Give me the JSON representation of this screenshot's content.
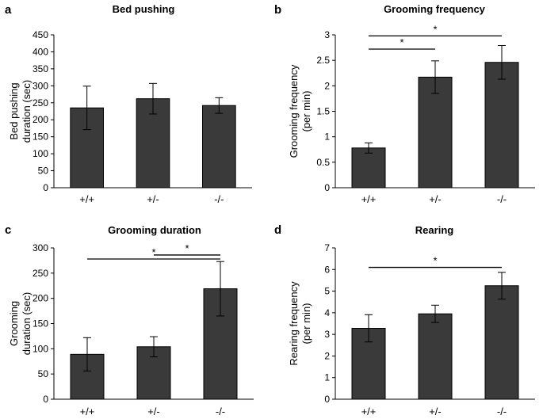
{
  "chart_data": [
    {
      "panel": "a",
      "type": "bar",
      "title": "Bed pushing",
      "ylabel_lines": [
        "Bed pushing",
        "duration (sec)"
      ],
      "xlabel": "",
      "categories": [
        "+/+",
        "+/-",
        "-/-"
      ],
      "values": [
        235,
        262,
        242
      ],
      "errors": [
        64,
        45,
        23
      ],
      "ylim": [
        0,
        450
      ],
      "yticks": [
        0,
        50,
        100,
        150,
        200,
        250,
        300,
        350,
        400,
        450
      ],
      "ytick_labels": [
        "0",
        "50",
        "100",
        "150",
        "200",
        "250",
        "300",
        "350",
        "400",
        "450"
      ],
      "bar_color": "#3a3a3a",
      "significance": []
    },
    {
      "panel": "b",
      "type": "bar",
      "title": "Grooming frequency",
      "ylabel_lines": [
        "Grooming frequency",
        "(per min)"
      ],
      "xlabel": "",
      "categories": [
        "+/+",
        "+/-",
        "-/-"
      ],
      "values": [
        0.78,
        2.17,
        2.46
      ],
      "errors": [
        0.1,
        0.32,
        0.33
      ],
      "ylim": [
        0,
        3
      ],
      "yticks": [
        0,
        0.5,
        1,
        1.5,
        2,
        2.5,
        3
      ],
      "ytick_labels": [
        "0",
        "0.5",
        "1",
        "1.5",
        "2",
        "2.5",
        "3"
      ],
      "bar_color": "#3a3a3a",
      "significance": [
        {
          "from": 0,
          "to": 1,
          "level": 2.72,
          "label": "*"
        },
        {
          "from": 0,
          "to": 2,
          "level": 2.98,
          "label": "*"
        }
      ]
    },
    {
      "panel": "c",
      "type": "bar",
      "title": "Grooming duration",
      "ylabel_lines": [
        "Grooming",
        "duration (sec)"
      ],
      "xlabel": "",
      "categories": [
        "+/+",
        "+/-",
        "-/-"
      ],
      "values": [
        89,
        104,
        219
      ],
      "errors": [
        33,
        20,
        54
      ],
      "ylim": [
        0,
        300
      ],
      "yticks": [
        0,
        50,
        100,
        150,
        200,
        250,
        300
      ],
      "ytick_labels": [
        "0",
        "50",
        "100",
        "150",
        "200",
        "250",
        "300"
      ],
      "bar_color": "#3a3a3a",
      "significance": [
        {
          "from": 1,
          "to": 2,
          "level": 286,
          "label": "*"
        },
        {
          "from": 0,
          "to": 2,
          "level": 278,
          "label": "*"
        }
      ]
    },
    {
      "panel": "d",
      "type": "bar",
      "title": "Rearing",
      "ylabel_lines": [
        "Rearing frequency",
        "(per min)"
      ],
      "xlabel": "",
      "categories": [
        "+/+",
        "+/-",
        "-/-"
      ],
      "values": [
        3.28,
        3.95,
        5.25
      ],
      "errors": [
        0.63,
        0.4,
        0.62
      ],
      "ylim": [
        0,
        7
      ],
      "yticks": [
        0,
        1,
        2,
        3,
        4,
        5,
        6,
        7
      ],
      "ytick_labels": [
        "0",
        "1",
        "2",
        "3",
        "4",
        "5",
        "6",
        "7"
      ],
      "bar_color": "#3a3a3a",
      "significance": [
        {
          "from": 0,
          "to": 2,
          "level": 6.1,
          "label": "*"
        }
      ]
    }
  ]
}
